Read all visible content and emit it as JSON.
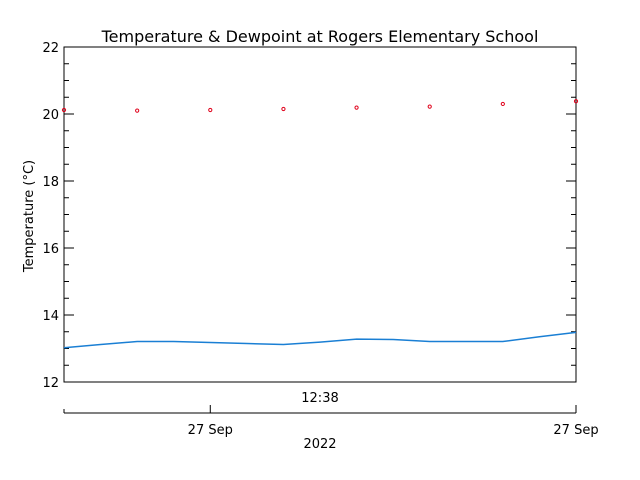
{
  "chart_data": {
    "type": "line",
    "title": "Temperature & Dewpoint at Rogers Elementary School",
    "ylabel": "Temperature (°C)",
    "ylim": [
      12,
      22
    ],
    "yticks": [
      12,
      14,
      16,
      18,
      20,
      22
    ],
    "xlim": [
      0,
      1
    ],
    "x_axis_labels": [
      {
        "text": "12:38",
        "x": 0.5
      },
      {
        "text": "27 Sep",
        "x": 0.2857
      },
      {
        "text": "27 Sep",
        "x": 1.0
      },
      {
        "text": "2022",
        "x": 0.5
      }
    ],
    "series": [
      {
        "role": "temperature",
        "style": "markers",
        "color": "#e0001a",
        "points": [
          {
            "x": 0.0,
            "y": 20.12
          },
          {
            "x": 0.1429,
            "y": 20.1
          },
          {
            "x": 0.2857,
            "y": 20.12
          },
          {
            "x": 0.4286,
            "y": 20.15
          },
          {
            "x": 0.5714,
            "y": 20.19
          },
          {
            "x": 0.7143,
            "y": 20.22
          },
          {
            "x": 0.8571,
            "y": 20.3
          },
          {
            "x": 1.0,
            "y": 20.38
          }
        ]
      },
      {
        "role": "dewpoint",
        "style": "line",
        "color": "#1a7fd4",
        "points": [
          {
            "x": 0.0,
            "y": 13.02
          },
          {
            "x": 0.0714,
            "y": 13.12
          },
          {
            "x": 0.1429,
            "y": 13.21
          },
          {
            "x": 0.2143,
            "y": 13.21
          },
          {
            "x": 0.2857,
            "y": 13.18
          },
          {
            "x": 0.3571,
            "y": 13.15
          },
          {
            "x": 0.4286,
            "y": 13.12
          },
          {
            "x": 0.5,
            "y": 13.19
          },
          {
            "x": 0.5714,
            "y": 13.28
          },
          {
            "x": 0.6429,
            "y": 13.27
          },
          {
            "x": 0.7143,
            "y": 13.21
          },
          {
            "x": 0.7857,
            "y": 13.21
          },
          {
            "x": 0.8571,
            "y": 13.21
          },
          {
            "x": 0.9286,
            "y": 13.35
          },
          {
            "x": 1.0,
            "y": 13.48
          }
        ]
      }
    ],
    "grid": false
  }
}
